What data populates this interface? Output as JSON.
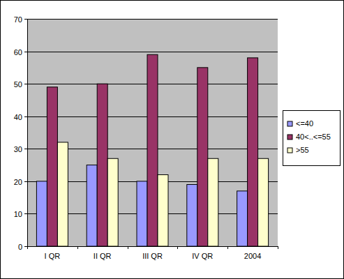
{
  "chart_data": {
    "type": "bar",
    "categories": [
      "I QR",
      "II QR",
      "III QR",
      "IV QR",
      "2004"
    ],
    "series": [
      {
        "name": "<=40",
        "color": "#9999ff",
        "values": [
          20,
          25,
          20,
          19,
          17
        ]
      },
      {
        "name": "40<..<=55",
        "color": "#993366",
        "values": [
          49,
          50,
          59,
          55,
          58
        ]
      },
      {
        "name": ">55",
        "color": "#ffffcc",
        "values": [
          32,
          27,
          22,
          27,
          27
        ]
      }
    ],
    "ylim": [
      0,
      70
    ],
    "yticks": [
      0,
      10,
      20,
      30,
      40,
      50,
      60,
      70
    ],
    "grid": true,
    "legend": "right"
  }
}
